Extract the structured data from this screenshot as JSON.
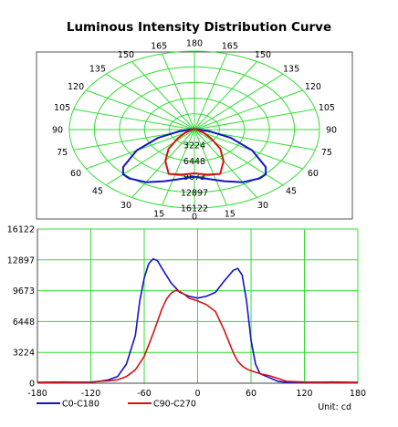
{
  "title": "Luminous Intensity Distribution Curve",
  "colors": {
    "grid": "#33dd33",
    "c0": "#1414c8",
    "c90": "#d41414"
  },
  "chart_data": [
    {
      "type": "polar",
      "angle_labels": [
        "0",
        "15",
        "30",
        "45",
        "60",
        "75",
        "90",
        "105",
        "120",
        "135",
        "150",
        "165",
        "180",
        "165",
        "150",
        "135",
        "120",
        "105",
        "90",
        "75",
        "60",
        "45",
        "30",
        "15"
      ],
      "radial_labels": [
        "3224",
        "6448",
        "9673",
        "12897",
        "16122"
      ],
      "rmax": 16122,
      "series": [
        {
          "name": "C0-C180",
          "color": "#1414c8",
          "points": [
            [
              0,
              9700
            ],
            [
              10,
              10300
            ],
            [
              20,
              11300
            ],
            [
              30,
              12500
            ],
            [
              40,
              13100
            ],
            [
              45,
              13000
            ],
            [
              50,
              12000
            ],
            [
              60,
              8600
            ],
            [
              70,
              5000
            ],
            [
              80,
              2000
            ],
            [
              90,
              700
            ],
            [
              100,
              280
            ],
            [
              120,
              150
            ],
            [
              150,
              100
            ],
            [
              180,
              80
            ]
          ]
        },
        {
          "name": "C90-C270",
          "color": "#d41414",
          "points": [
            [
              0,
              9000
            ],
            [
              10,
              9400
            ],
            [
              20,
              9700
            ],
            [
              30,
              7500
            ],
            [
              40,
              5200
            ],
            [
              50,
              2800
            ],
            [
              60,
              1400
            ],
            [
              70,
              700
            ],
            [
              80,
              350
            ],
            [
              90,
              250
            ],
            [
              100,
              200
            ],
            [
              120,
              120
            ],
            [
              150,
              90
            ],
            [
              180,
              80
            ]
          ]
        }
      ]
    },
    {
      "type": "line",
      "x_ticks": [
        "-180",
        "-120",
        "-60",
        "0",
        "60",
        "120",
        "180"
      ],
      "y_ticks": [
        "0",
        "3224",
        "6448",
        "9673",
        "12897",
        "16122"
      ],
      "xlim": [
        -180,
        180
      ],
      "ylim": [
        0,
        16122
      ],
      "unit_label": "Unit: cd",
      "series": [
        {
          "name": "C0-C180",
          "color": "#1414c8",
          "x": [
            -180,
            -150,
            -120,
            -110,
            -100,
            -90,
            -80,
            -70,
            -65,
            -60,
            -55,
            -50,
            -45,
            -40,
            -30,
            -20,
            -10,
            0,
            10,
            20,
            30,
            40,
            45,
            50,
            55,
            60,
            65,
            70,
            80,
            90,
            100,
            120,
            150,
            180
          ],
          "y": [
            100,
            120,
            100,
            200,
            350,
            700,
            2000,
            5000,
            8600,
            11000,
            12500,
            13000,
            12800,
            12000,
            10500,
            9500,
            9100,
            8900,
            9100,
            9500,
            10700,
            11800,
            12000,
            11300,
            8600,
            4500,
            2000,
            1000,
            600,
            200,
            100,
            100,
            120,
            100
          ]
        },
        {
          "name": "C90-C270",
          "color": "#d41414",
          "x": [
            -180,
            -150,
            -120,
            -110,
            -100,
            -90,
            -80,
            -70,
            -60,
            -50,
            -40,
            -35,
            -30,
            -25,
            -20,
            -15,
            -10,
            0,
            10,
            20,
            30,
            40,
            45,
            50,
            55,
            60,
            70,
            80,
            90,
            100,
            120,
            150,
            180
          ],
          "y": [
            80,
            90,
            120,
            200,
            250,
            350,
            700,
            1400,
            2800,
            5200,
            7800,
            8800,
            9400,
            9700,
            9600,
            9300,
            8900,
            8600,
            8200,
            7500,
            5500,
            3200,
            2300,
            1800,
            1500,
            1300,
            1000,
            800,
            500,
            200,
            120,
            90,
            80
          ]
        }
      ],
      "legend": [
        "C0-C180",
        "C90-C270"
      ]
    }
  ]
}
